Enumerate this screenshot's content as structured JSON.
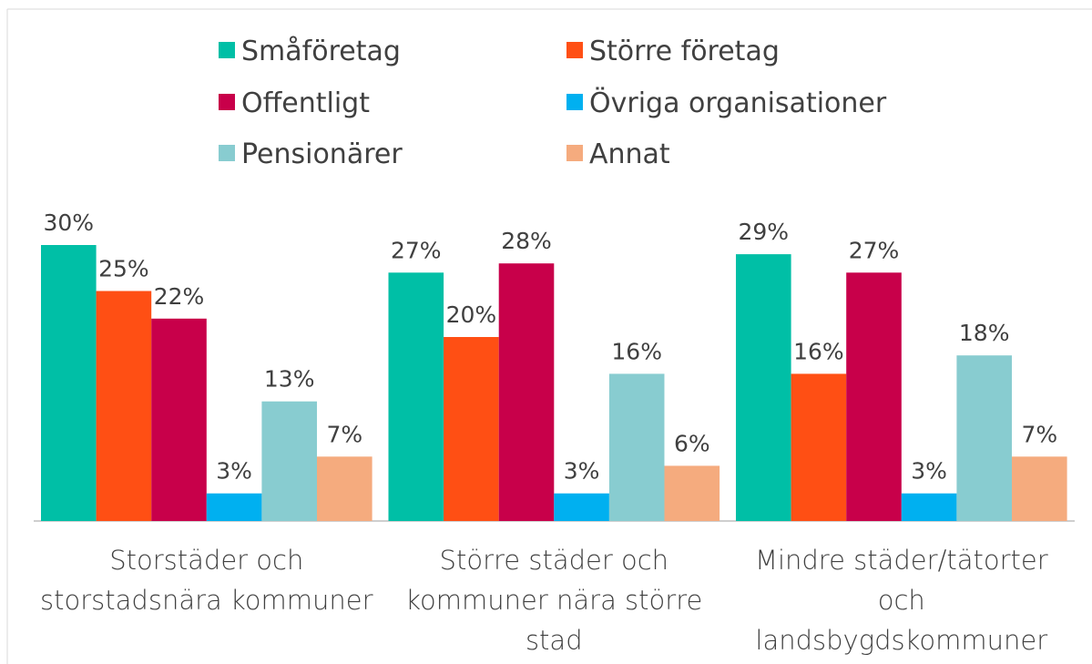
{
  "chart_data": {
    "type": "bar",
    "categories": [
      "Storstäder och storstadsnära kommuner",
      "Större städer och kommuner nära större stad",
      "Mindre städer/tätorter och landsbygdskommuner"
    ],
    "series": [
      {
        "name": "Småföretag",
        "color": "#00bfa6",
        "values": [
          30,
          27,
          29
        ],
        "value_labels": [
          "30%",
          "27%",
          "29%"
        ]
      },
      {
        "name": "Större företag",
        "color": "#ff4f14",
        "values": [
          25,
          20,
          16
        ],
        "value_labels": [
          "25%",
          "20%",
          "16%"
        ]
      },
      {
        "name": "Offentligt",
        "color": "#c8004a",
        "values": [
          22,
          28,
          27
        ],
        "value_labels": [
          "22%",
          "28%",
          "27%"
        ]
      },
      {
        "name": "Övriga organisationer",
        "color": "#00b0f0",
        "values": [
          3,
          3,
          3
        ],
        "value_labels": [
          "3%",
          "3%",
          "3%"
        ]
      },
      {
        "name": "Pensionärer",
        "color": "#88ccd0",
        "values": [
          13,
          16,
          18
        ],
        "value_labels": [
          "13%",
          "16%",
          "18%"
        ]
      },
      {
        "name": "Annat",
        "color": "#f5ab7e",
        "values": [
          7,
          6,
          7
        ],
        "value_labels": [
          "7%",
          "6%",
          "7%"
        ]
      }
    ],
    "legend": "top"
  }
}
